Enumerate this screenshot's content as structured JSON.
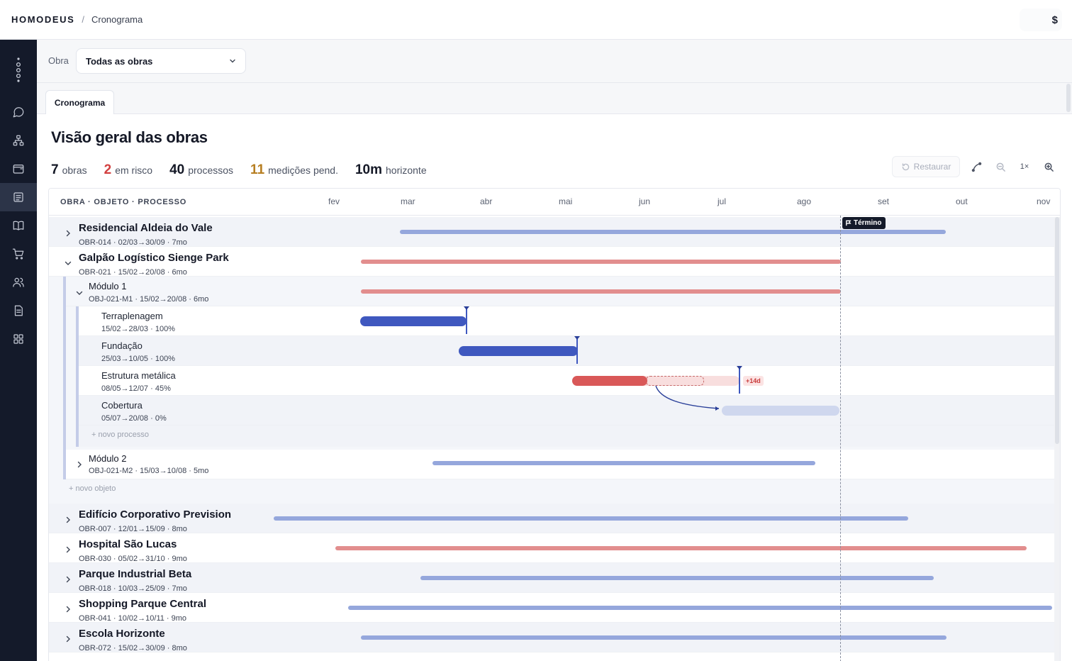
{
  "topbar": {
    "brand": "HOMODEUS",
    "separator": "/",
    "crumb": "Cronograma",
    "right_symbol": "$"
  },
  "sidebar": {
    "items": [
      {
        "icon": "chat-icon",
        "active": false
      },
      {
        "icon": "org-chart-icon",
        "active": false
      },
      {
        "icon": "wallet-icon",
        "active": false
      },
      {
        "icon": "schedule-icon",
        "active": true
      },
      {
        "icon": "book-icon",
        "active": false
      },
      {
        "icon": "cart-icon",
        "active": false
      },
      {
        "icon": "users-icon",
        "active": false
      },
      {
        "icon": "document-icon",
        "active": false
      },
      {
        "icon": "apps-grid-icon",
        "active": false
      }
    ]
  },
  "filter": {
    "label": "Obra",
    "value": "Todas as obras"
  },
  "tabs": [
    {
      "label": "Cronograma"
    }
  ],
  "page": {
    "title": "Visão geral das obras"
  },
  "stats": [
    {
      "value": "7",
      "label": "obras"
    },
    {
      "value": "2",
      "label": "em risco"
    },
    {
      "value": "40",
      "label": "processos"
    },
    {
      "value": "11",
      "label": "medições pend."
    },
    {
      "value": "10m",
      "label": "horizonte"
    }
  ],
  "toolbar": {
    "restore_label": "Restaurar",
    "zoom_level": "1×"
  },
  "gantt": {
    "column_title": "OBRA · OBJETO · PROCESSO",
    "months": [
      "fev",
      "mar",
      "abr",
      "mai",
      "jun",
      "jul",
      "ago",
      "set",
      "out",
      "nov"
    ],
    "today_label": "Término",
    "add_process_label": "+ novo processo",
    "add_object_label": "+ novo objeto",
    "obras": [
      {
        "name": "Residencial Aldeia do Vale",
        "meta": "OBR-014 · 02/03→30/09 · 7mo",
        "status": "ok",
        "expanded": false
      },
      {
        "name": "Galpão Logístico Sienge Park",
        "meta": "OBR-021 · 15/02→20/08 · 6mo",
        "status": "risk",
        "expanded": true
      },
      {
        "name": "Edifício Corporativo Prevision",
        "meta": "OBR-007 · 12/01→15/09 · 8mo",
        "status": "ok",
        "expanded": false
      },
      {
        "name": "Hospital São Lucas",
        "meta": "OBR-030 · 05/02→31/10 · 9mo",
        "status": "risk",
        "expanded": false
      },
      {
        "name": "Parque Industrial Beta",
        "meta": "OBR-018 · 10/03→25/09 · 7mo",
        "status": "ok",
        "expanded": false
      },
      {
        "name": "Shopping Parque Central",
        "meta": "OBR-041 · 10/02→10/11 · 9mo",
        "status": "ok",
        "expanded": false
      },
      {
        "name": "Escola Horizonte",
        "meta": "OBR-072 · 15/02→30/09 · 8mo",
        "status": "ok",
        "expanded": false
      }
    ],
    "objetos": [
      {
        "name": "Módulo 1",
        "meta": "OBJ-021-M1 · 15/02→20/08 · 6mo",
        "status": "risk",
        "expanded": true
      },
      {
        "name": "Módulo 2",
        "meta": "OBJ-021-M2 · 15/03→10/08 · 5mo",
        "status": "ok",
        "expanded": false
      }
    ],
    "processos": [
      {
        "name": "Terraplenagem",
        "meta": "15/02→28/03 · 100%",
        "progress": 100
      },
      {
        "name": "Fundação",
        "meta": "25/03→10/05 · 100%",
        "progress": 100
      },
      {
        "name": "Estrutura metálica",
        "meta": "08/05→12/07 · 45%",
        "progress": 45,
        "delay": "+14d"
      },
      {
        "name": "Cobertura",
        "meta": "05/07→20/08 · 0%",
        "progress": 0
      }
    ]
  },
  "colors": {
    "ok_bar": "#95a7dc",
    "risk_bar": "#e28e8e",
    "done_bar": "#3f58bf",
    "late_bar": "#d95858",
    "sidebar_bg": "#141a2a"
  }
}
